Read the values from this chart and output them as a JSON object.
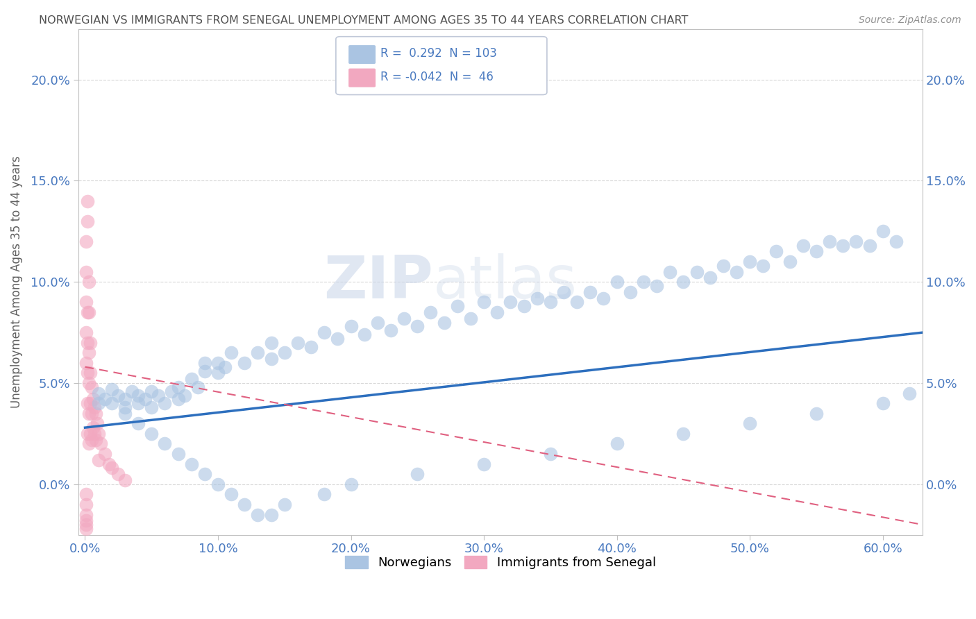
{
  "title": "NORWEGIAN VS IMMIGRANTS FROM SENEGAL UNEMPLOYMENT AMONG AGES 35 TO 44 YEARS CORRELATION CHART",
  "source": "Source: ZipAtlas.com",
  "ylabel": "Unemployment Among Ages 35 to 44 years",
  "xlim": [
    -0.005,
    0.63
  ],
  "ylim": [
    -0.025,
    0.225
  ],
  "norwegian_R": 0.292,
  "norwegian_N": 103,
  "senegal_R": -0.042,
  "senegal_N": 46,
  "norwegian_color": "#aac4e2",
  "senegal_color": "#f2a8c0",
  "norwegian_line_color": "#2d6fbe",
  "senegal_line_color": "#e06080",
  "legend_label_1": "Norwegians",
  "legend_label_2": "Immigrants from Senegal",
  "watermark_zip": "ZIP",
  "watermark_atlas": "atlas",
  "background_color": "#ffffff",
  "grid_color": "#d8d8d8",
  "title_color": "#505050",
  "axis_label_color": "#606060",
  "tick_label_color": "#4a7ac0",
  "right_tick_color": "#4a7ac0",
  "norw_x": [
    0.01,
    0.01,
    0.015,
    0.02,
    0.02,
    0.025,
    0.03,
    0.03,
    0.035,
    0.04,
    0.04,
    0.045,
    0.05,
    0.05,
    0.055,
    0.06,
    0.065,
    0.07,
    0.07,
    0.075,
    0.08,
    0.085,
    0.09,
    0.09,
    0.1,
    0.1,
    0.105,
    0.11,
    0.12,
    0.13,
    0.14,
    0.14,
    0.15,
    0.16,
    0.17,
    0.18,
    0.19,
    0.2,
    0.21,
    0.22,
    0.23,
    0.24,
    0.25,
    0.26,
    0.27,
    0.28,
    0.29,
    0.3,
    0.31,
    0.32,
    0.33,
    0.34,
    0.35,
    0.36,
    0.37,
    0.38,
    0.39,
    0.4,
    0.41,
    0.42,
    0.43,
    0.44,
    0.45,
    0.46,
    0.47,
    0.48,
    0.49,
    0.5,
    0.51,
    0.52,
    0.53,
    0.54,
    0.55,
    0.56,
    0.57,
    0.58,
    0.59,
    0.6,
    0.61,
    0.03,
    0.04,
    0.05,
    0.06,
    0.07,
    0.08,
    0.09,
    0.1,
    0.11,
    0.12,
    0.13,
    0.14,
    0.15,
    0.18,
    0.2,
    0.25,
    0.3,
    0.35,
    0.4,
    0.45,
    0.5,
    0.55,
    0.6,
    0.62
  ],
  "norw_y": [
    0.045,
    0.04,
    0.042,
    0.047,
    0.04,
    0.044,
    0.042,
    0.038,
    0.046,
    0.04,
    0.044,
    0.042,
    0.046,
    0.038,
    0.044,
    0.04,
    0.046,
    0.042,
    0.048,
    0.044,
    0.052,
    0.048,
    0.056,
    0.06,
    0.055,
    0.06,
    0.058,
    0.065,
    0.06,
    0.065,
    0.062,
    0.07,
    0.065,
    0.07,
    0.068,
    0.075,
    0.072,
    0.078,
    0.074,
    0.08,
    0.076,
    0.082,
    0.078,
    0.085,
    0.08,
    0.088,
    0.082,
    0.09,
    0.085,
    0.09,
    0.088,
    0.092,
    0.09,
    0.095,
    0.09,
    0.095,
    0.092,
    0.1,
    0.095,
    0.1,
    0.098,
    0.105,
    0.1,
    0.105,
    0.102,
    0.108,
    0.105,
    0.11,
    0.108,
    0.115,
    0.11,
    0.118,
    0.115,
    0.12,
    0.118,
    0.12,
    0.118,
    0.125,
    0.12,
    0.035,
    0.03,
    0.025,
    0.02,
    0.015,
    0.01,
    0.005,
    0.0,
    -0.005,
    -0.01,
    -0.015,
    -0.015,
    -0.01,
    -0.005,
    0.0,
    0.005,
    0.01,
    0.015,
    0.02,
    0.025,
    0.03,
    0.035,
    0.04,
    0.045
  ],
  "sene_x": [
    0.001,
    0.001,
    0.001,
    0.001,
    0.001,
    0.002,
    0.002,
    0.002,
    0.002,
    0.002,
    0.003,
    0.003,
    0.003,
    0.003,
    0.004,
    0.004,
    0.004,
    0.005,
    0.005,
    0.005,
    0.006,
    0.006,
    0.007,
    0.007,
    0.008,
    0.008,
    0.009,
    0.01,
    0.01,
    0.012,
    0.015,
    0.018,
    0.02,
    0.025,
    0.03,
    0.001,
    0.001,
    0.001,
    0.001,
    0.001,
    0.001,
    0.002,
    0.002,
    0.003,
    0.003,
    0.004
  ],
  "sene_y": [
    0.12,
    0.105,
    0.09,
    0.075,
    0.06,
    0.085,
    0.07,
    0.055,
    0.04,
    0.025,
    0.065,
    0.05,
    0.035,
    0.02,
    0.055,
    0.04,
    0.025,
    0.048,
    0.035,
    0.022,
    0.042,
    0.028,
    0.038,
    0.025,
    0.035,
    0.022,
    0.03,
    0.025,
    0.012,
    0.02,
    0.015,
    0.01,
    0.008,
    0.005,
    0.002,
    -0.005,
    -0.01,
    -0.015,
    -0.018,
    -0.02,
    -0.022,
    0.14,
    0.13,
    0.1,
    0.085,
    0.07
  ],
  "norw_trend_x": [
    0.0,
    0.63
  ],
  "norw_trend_y": [
    0.028,
    0.075
  ],
  "sene_trend_x": [
    0.0,
    0.63
  ],
  "sene_trend_y": [
    0.058,
    -0.02
  ]
}
